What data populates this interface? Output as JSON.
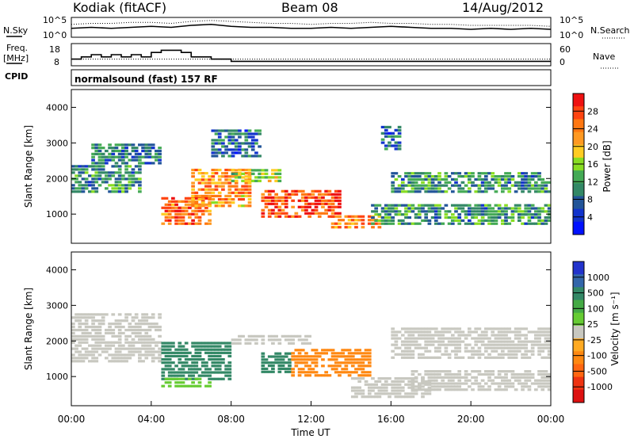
{
  "header": {
    "station_label": "Kodiak (fitACF)",
    "beam_label": "Beam 08",
    "date_label": "14/Aug/2012"
  },
  "panels": {
    "nsky_label": "N.Sky",
    "nsearch_label": "N.Search",
    "freq_label_line1": "Freq.",
    "freq_label_line2": "[MHz]",
    "nave_label": "Nave",
    "cpid_label": "CPID",
    "cpid_value": "normalsound (fast) 157 RF"
  },
  "chart_data": [
    {
      "type": "line",
      "name": "noise-strip",
      "y_ticks_left": [
        "10^5",
        "10^0"
      ],
      "y_ticks_right": [
        "10^5",
        "10^0"
      ],
      "series": [
        {
          "name": "N.Sky",
          "x": [
            0,
            1,
            2,
            3,
            4,
            5,
            6,
            7,
            8,
            9,
            10,
            11,
            12,
            13,
            14,
            15,
            16,
            17,
            18,
            19,
            20,
            21,
            22,
            23,
            24
          ],
          "values": [
            0.45,
            0.5,
            0.45,
            0.5,
            0.55,
            0.5,
            0.6,
            0.65,
            0.55,
            0.5,
            0.5,
            0.45,
            0.45,
            0.5,
            0.45,
            0.5,
            0.55,
            0.5,
            0.45,
            0.45,
            0.4,
            0.45,
            0.4,
            0.45,
            0.4
          ]
        },
        {
          "name": "N.Search",
          "x": [
            0,
            1,
            2,
            3,
            4,
            5,
            6,
            7,
            8,
            9,
            10,
            11,
            12,
            13,
            14,
            15,
            16,
            17,
            18,
            19,
            20,
            21,
            22,
            23,
            24
          ],
          "values": [
            0.65,
            0.7,
            0.7,
            0.75,
            0.75,
            0.7,
            0.8,
            0.85,
            0.8,
            0.75,
            0.7,
            0.7,
            0.65,
            0.7,
            0.7,
            0.75,
            0.7,
            0.7,
            0.65,
            0.65,
            0.6,
            0.6,
            0.6,
            0.6,
            0.55
          ]
        }
      ]
    },
    {
      "type": "line",
      "name": "frequency-nave-strip",
      "y_ticks_left": [
        "18",
        "8"
      ],
      "y_ticks_right": [
        "60",
        "0"
      ],
      "series": [
        {
          "name": "Freq.",
          "x": [
            0,
            0.5,
            1,
            1.5,
            2,
            2.5,
            3,
            3.5,
            4,
            4.5,
            5,
            5.5,
            6,
            6.5,
            7,
            7.5,
            8,
            12,
            16,
            20,
            24
          ],
          "values": [
            11,
            12,
            13,
            12,
            13,
            12,
            13,
            12,
            14,
            15,
            15,
            14,
            12,
            12,
            11,
            11,
            10,
            10,
            10,
            10,
            10
          ]
        },
        {
          "name": "Nave",
          "x": [
            0,
            24
          ],
          "values": [
            18,
            18
          ]
        }
      ]
    },
    {
      "type": "heatmap",
      "name": "power-panel",
      "ylabel": "Slant Range [km]",
      "ylim": [
        180,
        4500
      ],
      "yticks": [
        1000,
        2000,
        3000,
        4000
      ],
      "colorbar_label": "Power [dB]",
      "colorbar_ticks": [
        "28",
        "24",
        "20",
        "16",
        "12",
        "8",
        "4"
      ],
      "colorbar_colors": [
        "#ee1111",
        "#ff4411",
        "#ff7711",
        "#ff9922",
        "#ffcc22",
        "#88dd22",
        "#44aa55",
        "#338866",
        "#225599",
        "#1133cc",
        "#0011ff"
      ],
      "blobs": [
        {
          "x0": 0.0,
          "x1": 3.5,
          "r0": 1600,
          "r1": 2400,
          "level": 0.3
        },
        {
          "x0": 1.0,
          "x1": 4.5,
          "r0": 2400,
          "r1": 3000,
          "level": 0.25
        },
        {
          "x0": 4.5,
          "x1": 7.0,
          "r0": 700,
          "r1": 1500,
          "level": 0.8
        },
        {
          "x0": 6.0,
          "x1": 9.0,
          "r0": 1200,
          "r1": 2300,
          "level": 0.7
        },
        {
          "x0": 9.5,
          "x1": 13.5,
          "r0": 900,
          "r1": 1700,
          "level": 0.85
        },
        {
          "x0": 13.0,
          "x1": 15.5,
          "r0": 600,
          "r1": 1000,
          "level": 0.75
        },
        {
          "x0": 8.0,
          "x1": 10.5,
          "r0": 1900,
          "r1": 2300,
          "level": 0.5
        },
        {
          "x0": 15.0,
          "x1": 24.0,
          "r0": 700,
          "r1": 1300,
          "level": 0.3
        },
        {
          "x0": 16.0,
          "x1": 24.0,
          "r0": 1600,
          "r1": 2200,
          "level": 0.3
        },
        {
          "x0": 15.5,
          "x1": 16.5,
          "r0": 2800,
          "r1": 3500,
          "level": 0.2
        },
        {
          "x0": 7.0,
          "x1": 9.5,
          "r0": 2600,
          "r1": 3400,
          "level": 0.2
        }
      ]
    },
    {
      "type": "heatmap",
      "name": "velocity-panel",
      "ylabel": "Slant Range [km]",
      "xlabel": "Time UT",
      "xlim": [
        0,
        24
      ],
      "xticks": [
        "00:00",
        "04:00",
        "08:00",
        "12:00",
        "16:00",
        "20:00",
        "00:00"
      ],
      "ylim": [
        180,
        4500
      ],
      "yticks": [
        1000,
        2000,
        3000,
        4000
      ],
      "colorbar_label": "Velocity [m s⁻¹]",
      "colorbar_ticks": [
        "1000",
        "500",
        "100",
        "25",
        "-25",
        "-100",
        "-500",
        "-1000"
      ],
      "colorbar_colors": [
        "#2233cc",
        "#3366aa",
        "#338866",
        "#44aa44",
        "#66cc33",
        "#c8c8c0",
        "#ffaa22",
        "#ff8811",
        "#ff6611",
        "#ee3311",
        "#dd1111"
      ],
      "blobs": [
        {
          "x0": 0.0,
          "x1": 4.5,
          "r0": 1400,
          "r1": 2800,
          "color": "#c8c8c0"
        },
        {
          "x0": 4.5,
          "x1": 8.0,
          "r0": 900,
          "r1": 2000,
          "color": "#338866"
        },
        {
          "x0": 4.5,
          "x1": 7.0,
          "r0": 700,
          "r1": 1000,
          "color": "#66cc33"
        },
        {
          "x0": 9.5,
          "x1": 11.0,
          "r0": 1100,
          "r1": 1700,
          "color": "#338866"
        },
        {
          "x0": 11.0,
          "x1": 15.0,
          "r0": 1000,
          "r1": 1800,
          "color": "#ff8811"
        },
        {
          "x0": 8.0,
          "x1": 12.0,
          "r0": 1900,
          "r1": 2200,
          "color": "#c8c8c0"
        },
        {
          "x0": 14.0,
          "x1": 18.0,
          "r0": 400,
          "r1": 1000,
          "color": "#c8c8c0"
        },
        {
          "x0": 16.0,
          "x1": 24.0,
          "r0": 1500,
          "r1": 2400,
          "color": "#c8c8c0"
        },
        {
          "x0": 17.0,
          "x1": 24.0,
          "r0": 600,
          "r1": 1200,
          "color": "#c8c8c0"
        }
      ]
    }
  ]
}
